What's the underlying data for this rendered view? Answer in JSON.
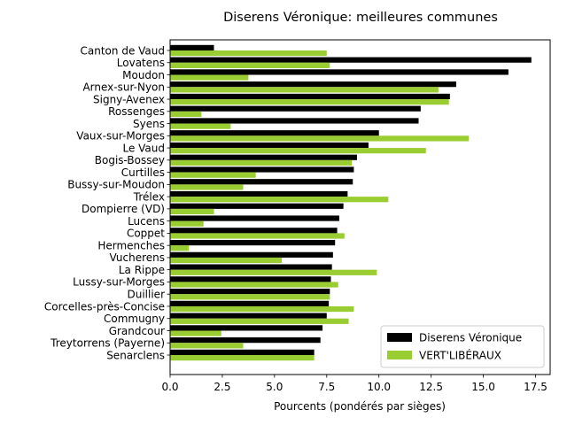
{
  "chart_data": {
    "type": "bar",
    "orientation": "horizontal",
    "title": "Diserens Véronique: meilleures communes",
    "xlabel": "Pourcents (pondérés par sièges)",
    "ylabel": "",
    "xlim": [
      0,
      18.2
    ],
    "xticks": [
      "0.0",
      "2.5",
      "5.0",
      "7.5",
      "10.0",
      "12.5",
      "15.0",
      "17.5"
    ],
    "xtick_values": [
      0,
      2.5,
      5.0,
      7.5,
      10.0,
      12.5,
      15.0,
      17.5
    ],
    "grid": false,
    "legend_position": "lower-right",
    "categories": [
      "Canton de Vaud",
      "Lovatens",
      "Moudon",
      "Arnex-sur-Nyon",
      "Signy-Avenex",
      "Rossenges",
      "Syens",
      "Vaux-sur-Morges",
      "Le Vaud",
      "Bogis-Bossey",
      "Curtilles",
      "Bussy-sur-Moudon",
      "Trélex",
      "Dompierre (VD)",
      "Lucens",
      "Coppet",
      "Hermenches",
      "Vucherens",
      "La Rippe",
      "Lussy-sur-Morges",
      "Duillier",
      "Corcelles-près-Concise",
      "Commugny",
      "Grandcour",
      "Treytorrens (Payerne)",
      "Senarclens"
    ],
    "series": [
      {
        "name": "Diserens Véronique",
        "color": "#000000",
        "values": [
          2.1,
          17.3,
          16.2,
          13.7,
          13.4,
          12.0,
          11.9,
          10.0,
          9.5,
          8.95,
          8.8,
          8.75,
          8.5,
          8.3,
          8.1,
          8.0,
          7.9,
          7.8,
          7.75,
          7.7,
          7.65,
          7.6,
          7.5,
          7.3,
          7.2,
          6.9
        ]
      },
      {
        "name": "VERT'LIBÉRAUX",
        "color": "#9acd32",
        "values": [
          7.5,
          7.65,
          3.75,
          12.85,
          13.35,
          1.5,
          2.9,
          14.3,
          12.25,
          8.7,
          4.1,
          3.5,
          10.45,
          2.1,
          1.6,
          8.35,
          0.9,
          5.35,
          9.9,
          8.05,
          7.65,
          8.8,
          8.55,
          2.45,
          3.5,
          6.9
        ]
      }
    ]
  }
}
